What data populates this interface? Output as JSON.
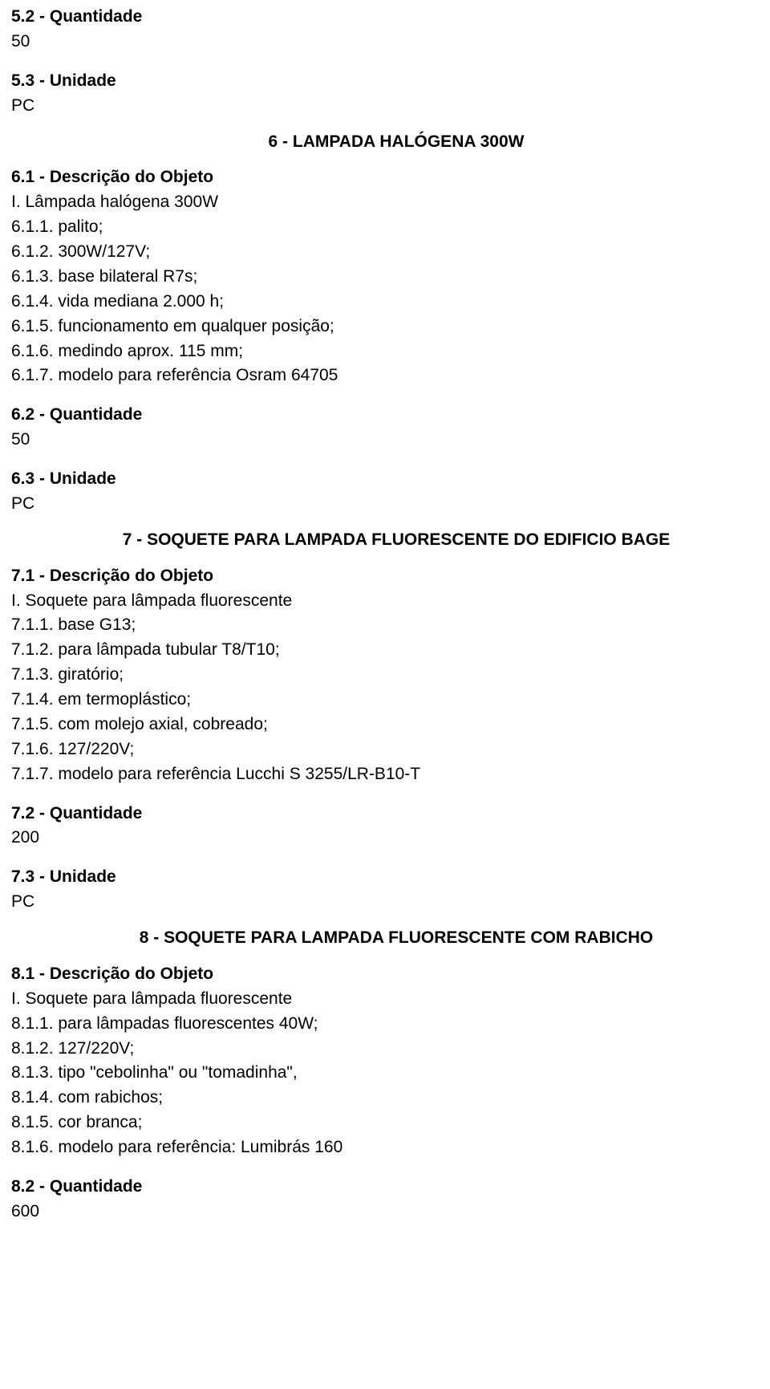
{
  "s5": {
    "q_label": "5.2 - Quantidade",
    "q_value": "50",
    "u_label": "5.3 - Unidade",
    "u_value": "PC"
  },
  "s6": {
    "title": "6 - LAMPADA HALÓGENA 300W",
    "desc_label": "6.1 - Descrição do Objeto",
    "desc_intro": "I. Lâmpada halógena 300W",
    "items": {
      "i1": "6.1.1. palito;",
      "i2": "6.1.2. 300W/127V;",
      "i3": "6.1.3. base bilateral R7s;",
      "i4": "6.1.4. vida mediana 2.000 h;",
      "i5": "6.1.5. funcionamento em qualquer posição;",
      "i6": "6.1.6. medindo aprox. 115 mm;",
      "i7": "6.1.7. modelo para referência Osram 64705"
    },
    "q_label": "6.2 - Quantidade",
    "q_value": "50",
    "u_label": "6.3 - Unidade",
    "u_value": "PC"
  },
  "s7": {
    "title": "7 - SOQUETE PARA LAMPADA FLUORESCENTE DO EDIFICIO BAGE",
    "desc_label": "7.1 - Descrição do Objeto",
    "desc_intro": "I. Soquete para lâmpada fluorescente",
    "items": {
      "i1": "7.1.1. base G13;",
      "i2": "7.1.2. para lâmpada tubular T8/T10;",
      "i3": "7.1.3. giratório;",
      "i4": "7.1.4. em termoplástico;",
      "i5": "7.1.5. com molejo axial, cobreado;",
      "i6": "7.1.6. 127/220V;",
      "i7": "7.1.7. modelo para referência Lucchi S 3255/LR-B10-T"
    },
    "q_label": "7.2 - Quantidade",
    "q_value": "200",
    "u_label": "7.3 - Unidade",
    "u_value": "PC"
  },
  "s8": {
    "title": "8 - SOQUETE PARA LAMPADA FLUORESCENTE COM RABICHO",
    "desc_label": "8.1 - Descrição do Objeto",
    "desc_intro": "I. Soquete para lâmpada fluorescente",
    "items": {
      "i1": "8.1.1. para lâmpadas fluorescentes 40W;",
      "i2": "8.1.2. 127/220V;",
      "i3": "8.1.3. tipo \"cebolinha\" ou \"tomadinha\",",
      "i4": "8.1.4. com rabichos;",
      "i5": "8.1.5. cor branca;",
      "i6": "8.1.6. modelo para referência: Lumibrás 160"
    },
    "q_label": "8.2 - Quantidade",
    "q_value": "600"
  }
}
